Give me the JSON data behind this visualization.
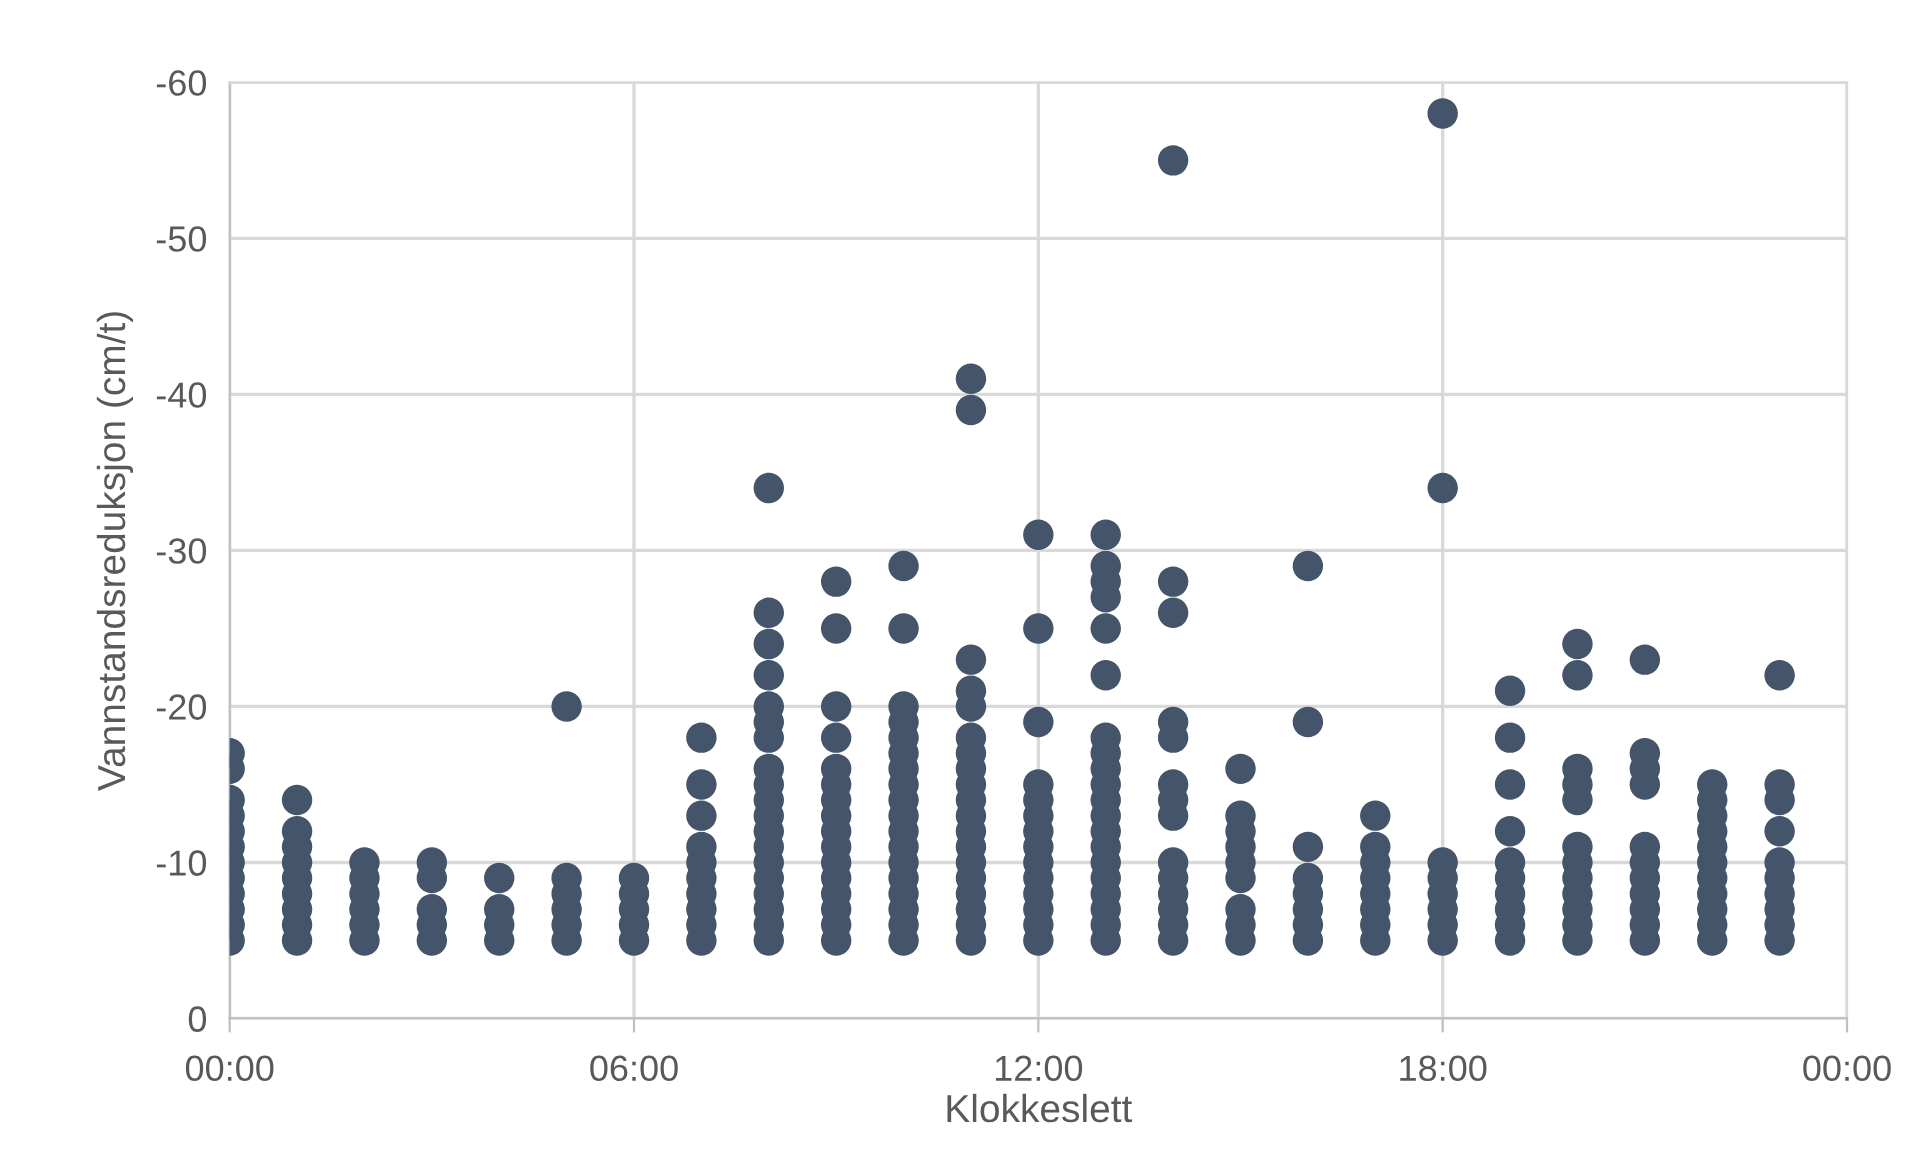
{
  "chart_data": {
    "type": "scatter",
    "xlabel": "Klokkeslett",
    "ylabel": "Vannstandsreduksjon (cm/t)",
    "xlim": [
      0,
      24
    ],
    "xticks": [
      {
        "value": 0,
        "label": "00:00"
      },
      {
        "value": 6,
        "label": "06:00"
      },
      {
        "value": 12,
        "label": "12:00"
      },
      {
        "value": 18,
        "label": "18:00"
      },
      {
        "value": 24,
        "label": "00:00"
      }
    ],
    "ylim": [
      0,
      -60
    ],
    "yticks": [
      0,
      -10,
      -20,
      -30,
      -40,
      -50,
      -60
    ],
    "grid": true,
    "marker": "circle",
    "series": [
      {
        "color": "#44546a",
        "x": [
          0,
          0,
          0,
          0,
          0,
          0,
          0,
          0,
          0,
          0,
          0,
          0,
          1,
          1,
          1,
          1,
          1,
          1,
          1,
          1,
          1,
          2,
          2,
          2,
          2,
          2,
          2,
          3,
          3,
          3,
          3,
          3,
          4,
          4,
          4,
          4,
          5,
          5,
          5,
          5,
          5,
          5,
          6,
          6,
          6,
          6,
          6,
          7,
          7,
          7,
          7,
          7,
          7,
          7,
          7,
          7,
          7,
          8,
          8,
          8,
          8,
          8,
          8,
          8,
          8,
          8,
          8,
          8,
          8,
          8,
          8,
          8,
          8,
          8,
          8,
          8,
          9,
          9,
          9,
          9,
          9,
          9,
          9,
          9,
          9,
          9,
          9,
          9,
          9,
          9,
          9,
          9,
          10,
          10,
          10,
          10,
          10,
          10,
          10,
          10,
          10,
          10,
          10,
          10,
          10,
          10,
          10,
          10,
          10,
          10,
          11,
          11,
          11,
          11,
          11,
          11,
          11,
          11,
          11,
          11,
          11,
          11,
          11,
          11,
          11,
          11,
          11,
          11,
          11,
          12,
          12,
          12,
          12,
          12,
          12,
          12,
          12,
          12,
          12,
          12,
          12,
          12,
          12,
          13,
          13,
          13,
          13,
          13,
          13,
          13,
          13,
          13,
          13,
          13,
          13,
          13,
          13,
          13,
          13,
          13,
          13,
          13,
          13,
          14,
          14,
          14,
          14,
          14,
          14,
          14,
          14,
          14,
          14,
          14,
          14,
          14,
          14,
          15,
          15,
          15,
          15,
          15,
          15,
          15,
          15,
          15,
          16,
          16,
          16,
          16,
          16,
          16,
          16,
          16,
          17,
          17,
          17,
          17,
          17,
          17,
          17,
          17,
          18,
          18,
          18,
          18,
          18,
          18,
          18,
          18,
          19,
          19,
          19,
          19,
          19,
          19,
          19,
          19,
          19,
          19,
          20,
          20,
          20,
          20,
          20,
          20,
          20,
          20,
          20,
          20,
          20,
          20,
          21,
          21,
          21,
          21,
          21,
          21,
          21,
          21,
          21,
          21,
          21,
          22,
          22,
          22,
          22,
          22,
          22,
          22,
          22,
          22,
          22,
          22,
          23,
          23,
          23,
          23,
          23,
          23,
          23,
          23,
          23,
          23
        ],
        "values": [
          -5,
          -6,
          -7,
          -8,
          -9,
          -10,
          -11,
          -12,
          -13,
          -14,
          -16,
          -17,
          -5,
          -6,
          -7,
          -8,
          -9,
          -10,
          -11,
          -12,
          -14,
          -5,
          -6,
          -7,
          -8,
          -9,
          -10,
          -5,
          -6,
          -7,
          -9,
          -10,
          -5,
          -6,
          -7,
          -9,
          -5,
          -6,
          -7,
          -8,
          -9,
          -20,
          -5,
          -6,
          -7,
          -8,
          -9,
          -5,
          -6,
          -7,
          -8,
          -9,
          -10,
          -11,
          -13,
          -15,
          -18,
          -5,
          -6,
          -7,
          -8,
          -9,
          -10,
          -11,
          -12,
          -13,
          -14,
          -15,
          -16,
          -18,
          -19,
          -20,
          -22,
          -24,
          -26,
          -34,
          -5,
          -6,
          -7,
          -8,
          -9,
          -10,
          -11,
          -12,
          -13,
          -14,
          -15,
          -16,
          -18,
          -20,
          -25,
          -28,
          -5,
          -6,
          -7,
          -8,
          -9,
          -10,
          -11,
          -12,
          -13,
          -14,
          -15,
          -16,
          -17,
          -18,
          -19,
          -20,
          -25,
          -29,
          -5,
          -6,
          -7,
          -8,
          -9,
          -10,
          -11,
          -12,
          -13,
          -14,
          -15,
          -16,
          -17,
          -18,
          -20,
          -21,
          -23,
          -39,
          -41,
          -5,
          -6,
          -7,
          -8,
          -9,
          -10,
          -11,
          -12,
          -13,
          -14,
          -15,
          -19,
          -25,
          -31,
          -5,
          -6,
          -7,
          -8,
          -9,
          -10,
          -11,
          -12,
          -13,
          -14,
          -15,
          -16,
          -17,
          -18,
          -22,
          -25,
          -27,
          -28,
          -29,
          -31,
          -5,
          -6,
          -7,
          -8,
          -9,
          -10,
          -13,
          -14,
          -15,
          -18,
          -19,
          -26,
          -28,
          -55,
          -5,
          -6,
          -7,
          -9,
          -10,
          -11,
          -12,
          -13,
          -16,
          -5,
          -6,
          -7,
          -8,
          -9,
          -11,
          -19,
          -29,
          -5,
          -6,
          -7,
          -8,
          -9,
          -10,
          -11,
          -13,
          -5,
          -6,
          -7,
          -8,
          -9,
          -10,
          -34,
          -58,
          -5,
          -6,
          -7,
          -8,
          -9,
          -10,
          -12,
          -15,
          -18,
          -21,
          -5,
          -6,
          -7,
          -8,
          -9,
          -10,
          -11,
          -14,
          -15,
          -16,
          -22,
          -24,
          -5,
          -6,
          -7,
          -8,
          -9,
          -10,
          -11,
          -15,
          -16,
          -17,
          -23,
          -5,
          -6,
          -7,
          -8,
          -9,
          -10,
          -11,
          -12,
          -13,
          -14,
          -15,
          -5,
          -6,
          -7,
          -8,
          -9,
          -10,
          -12,
          -14,
          -15,
          -22
        ]
      }
    ]
  }
}
